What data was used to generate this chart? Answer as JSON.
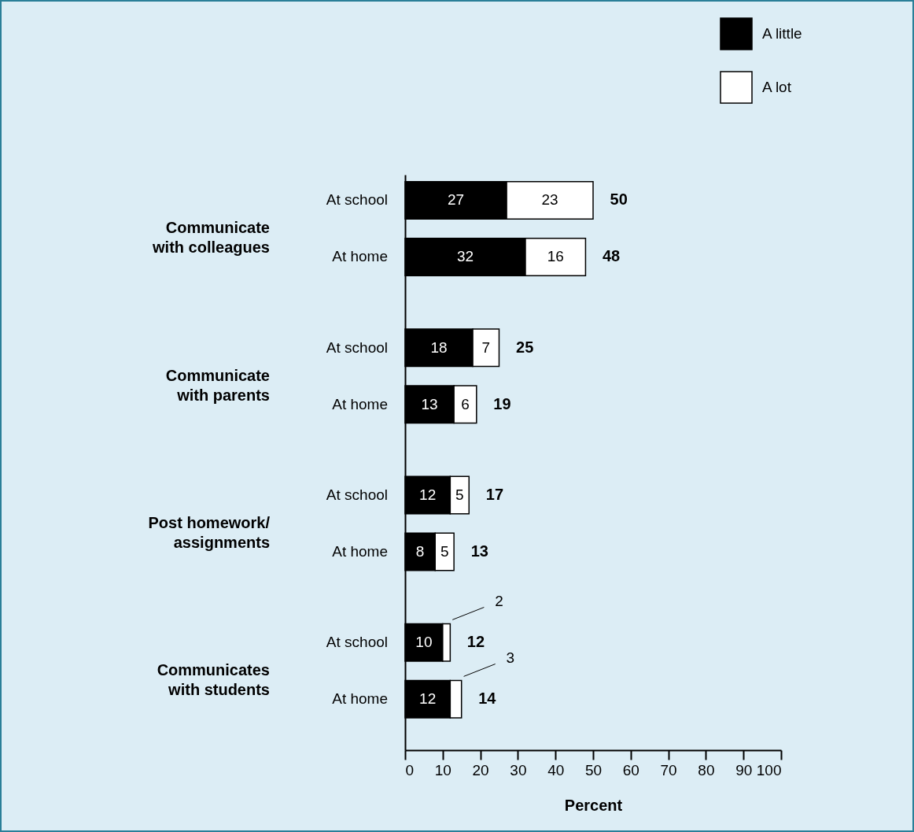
{
  "chart_data": {
    "type": "bar",
    "orientation": "horizontal",
    "stacked": true,
    "categories": [
      "At school",
      "At home",
      "At school",
      "At home",
      "At school",
      "At home",
      "At school",
      "At home"
    ],
    "series": [
      {
        "name": "A little",
        "color": "#000000",
        "values": [
          27,
          32,
          18,
          13,
          12,
          8,
          10,
          12
        ],
        "value_labels": [
          "27",
          "32",
          "18",
          "13",
          "12",
          "8",
          "10",
          "12"
        ]
      },
      {
        "name": "A lot",
        "color": "#ffffff",
        "values": [
          23,
          16,
          7,
          6,
          5,
          5,
          2,
          3
        ],
        "value_labels": [
          "23",
          "16",
          "7",
          "6",
          "5",
          "5",
          "2",
          "3"
        ]
      }
    ],
    "totals": [
      "50",
      "48",
      "25",
      "19",
      "17",
      "13",
      "12",
      "14"
    ],
    "annotations": [
      "Communicate\nwith colleagues",
      "Communicate\nwith parents",
      "Post homework/\nassignments",
      "Communicates\nwith students"
    ],
    "xlabel": "Percent",
    "xlim": [
      0,
      100
    ],
    "xticks": [
      0,
      10,
      20,
      30,
      40,
      50,
      60,
      70,
      80,
      90,
      100
    ],
    "grid": false,
    "legend": "top right"
  }
}
